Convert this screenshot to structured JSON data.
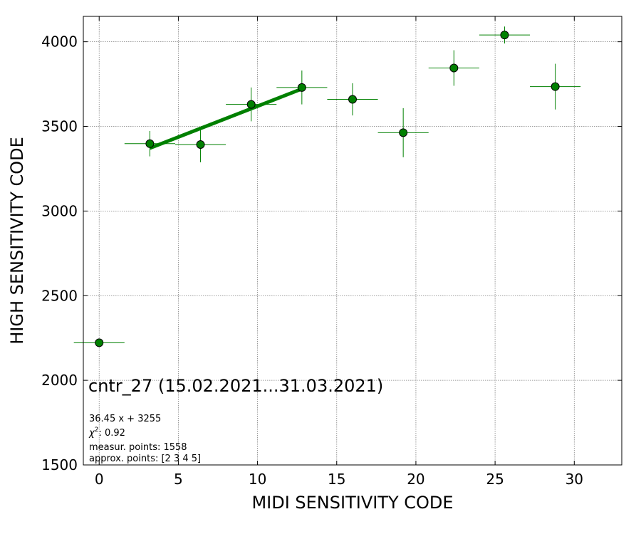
{
  "chart_data": {
    "type": "scatter",
    "title": "cntr_27 (15.02.2021...31.03.2021)",
    "xlabel": "MIDI SENSITIVITY CODE",
    "ylabel": "HIGH SENSITIVITY CODE",
    "xlim": [
      -1,
      33
    ],
    "ylim": [
      1500,
      4150
    ],
    "xticks": [
      0,
      5,
      10,
      15,
      20,
      25,
      30
    ],
    "yticks": [
      1500,
      2000,
      2500,
      3000,
      3500,
      4000
    ],
    "grid": true,
    "colors": {
      "marker": "#008000",
      "errorbar": "#008000",
      "fit": "#008000",
      "marker_edge": "#000000",
      "grid": "#808080"
    },
    "series": [
      {
        "points": [
          {
            "x": 0.0,
            "y": 2222,
            "xerr": 1.6,
            "yerr": 0
          },
          {
            "x": 3.2,
            "y": 3398,
            "xerr": 1.6,
            "yerr": 75
          },
          {
            "x": 6.4,
            "y": 3393,
            "xerr": 1.6,
            "yerr": 105
          },
          {
            "x": 9.6,
            "y": 3630,
            "xerr": 1.6,
            "yerr": 100
          },
          {
            "x": 12.8,
            "y": 3730,
            "xerr": 1.6,
            "yerr": 100
          },
          {
            "x": 16.0,
            "y": 3660,
            "xerr": 1.6,
            "yerr": 95
          },
          {
            "x": 19.2,
            "y": 3463,
            "xerr": 1.6,
            "yerr": 145
          },
          {
            "x": 22.4,
            "y": 3845,
            "xerr": 1.6,
            "yerr": 105
          },
          {
            "x": 25.6,
            "y": 4040,
            "xerr": 1.6,
            "yerr": 50
          },
          {
            "x": 28.8,
            "y": 3735,
            "xerr": 1.6,
            "yerr": 135
          }
        ]
      }
    ],
    "fit_line": {
      "x_start": 3.2,
      "x_end": 12.8,
      "slope": 36.45,
      "intercept": 3255
    },
    "annotations": {
      "equation": "36.45 x + 3255",
      "chi2_value": ": 0.92",
      "measur_points": "measur. points: 1558",
      "approx_points": "approx. points: [2 3 4 5]"
    }
  }
}
